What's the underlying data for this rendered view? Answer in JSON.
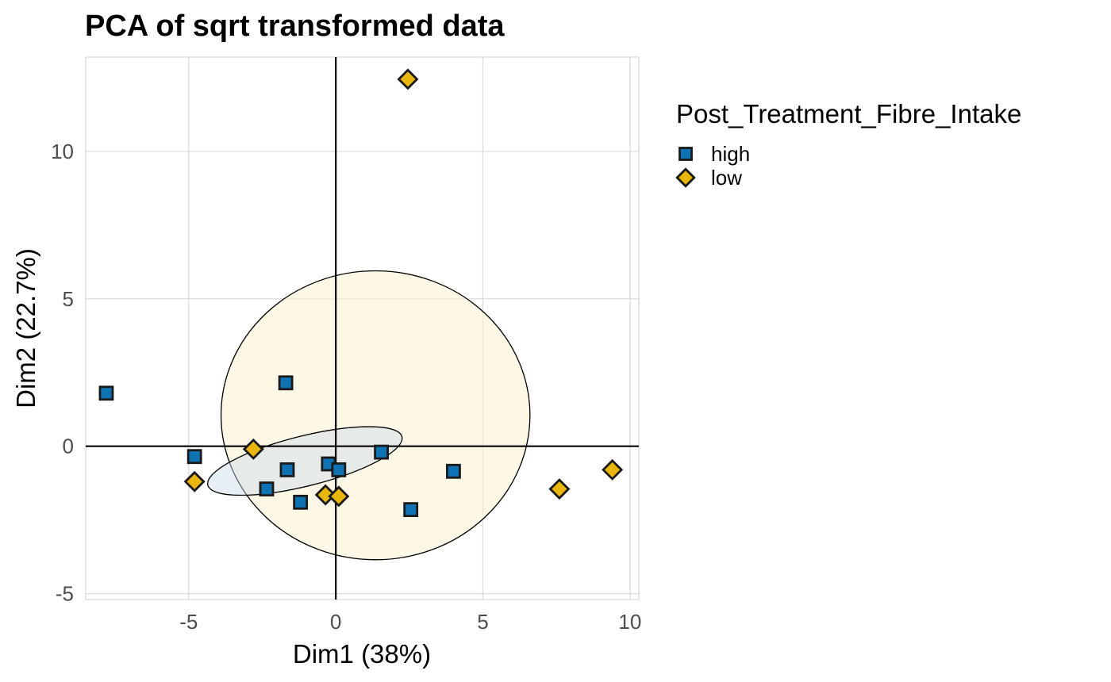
{
  "chart_data": {
    "type": "scatter",
    "title": "PCA of sqrt transformed data",
    "xlabel": "Dim1 (38%)",
    "ylabel": "Dim2 (22.7%)",
    "xlim": [
      -8.5,
      10.3
    ],
    "ylim": [
      -5.2,
      13.2
    ],
    "x_ticks": [
      -5,
      0,
      5,
      10
    ],
    "y_ticks": [
      -5,
      0,
      5,
      10
    ],
    "x_tick_labels": [
      "-5",
      "0",
      "5",
      "10"
    ],
    "y_tick_labels": [
      "-5",
      "0",
      "5",
      "10"
    ],
    "grid": true,
    "legend_placement": "right",
    "legend_title": "Post_Treatment_Fibre_Intake",
    "series": [
      {
        "name": "high",
        "marker": "square",
        "color": "#0F73B3",
        "points": [
          {
            "x": -7.8,
            "y": 1.8
          },
          {
            "x": -4.8,
            "y": -0.35
          },
          {
            "x": -1.7,
            "y": 2.15
          },
          {
            "x": -1.65,
            "y": -0.8
          },
          {
            "x": -2.35,
            "y": -1.45
          },
          {
            "x": -1.2,
            "y": -1.9
          },
          {
            "x": -0.25,
            "y": -0.6
          },
          {
            "x": 0.1,
            "y": -0.8
          },
          {
            "x": 1.55,
            "y": -0.2
          },
          {
            "x": 2.55,
            "y": -2.15
          },
          {
            "x": 4.0,
            "y": -0.85
          }
        ]
      },
      {
        "name": "low",
        "marker": "diamond",
        "color": "#E9B70C",
        "points": [
          {
            "x": 2.45,
            "y": 12.45
          },
          {
            "x": -4.8,
            "y": -1.2
          },
          {
            "x": -2.8,
            "y": -0.1
          },
          {
            "x": -0.35,
            "y": -1.65
          },
          {
            "x": 0.1,
            "y": -1.7
          },
          {
            "x": 7.6,
            "y": -1.45
          },
          {
            "x": 9.4,
            "y": -0.8
          }
        ]
      }
    ],
    "ellipses": [
      {
        "series": "low",
        "cx": 1.35,
        "cy": 1.05,
        "rx": 5.25,
        "ry": 4.9,
        "angle": 0,
        "fill": "#FBF1CF",
        "opacity": 0.55
      },
      {
        "series": "high",
        "cx": -1.05,
        "cy": -0.5,
        "rx": 3.4,
        "ry": 0.85,
        "angle": -14,
        "fill": "#C9DCEB",
        "opacity": 0.45
      }
    ],
    "reference_lines": {
      "x": 0,
      "y": 0
    }
  }
}
